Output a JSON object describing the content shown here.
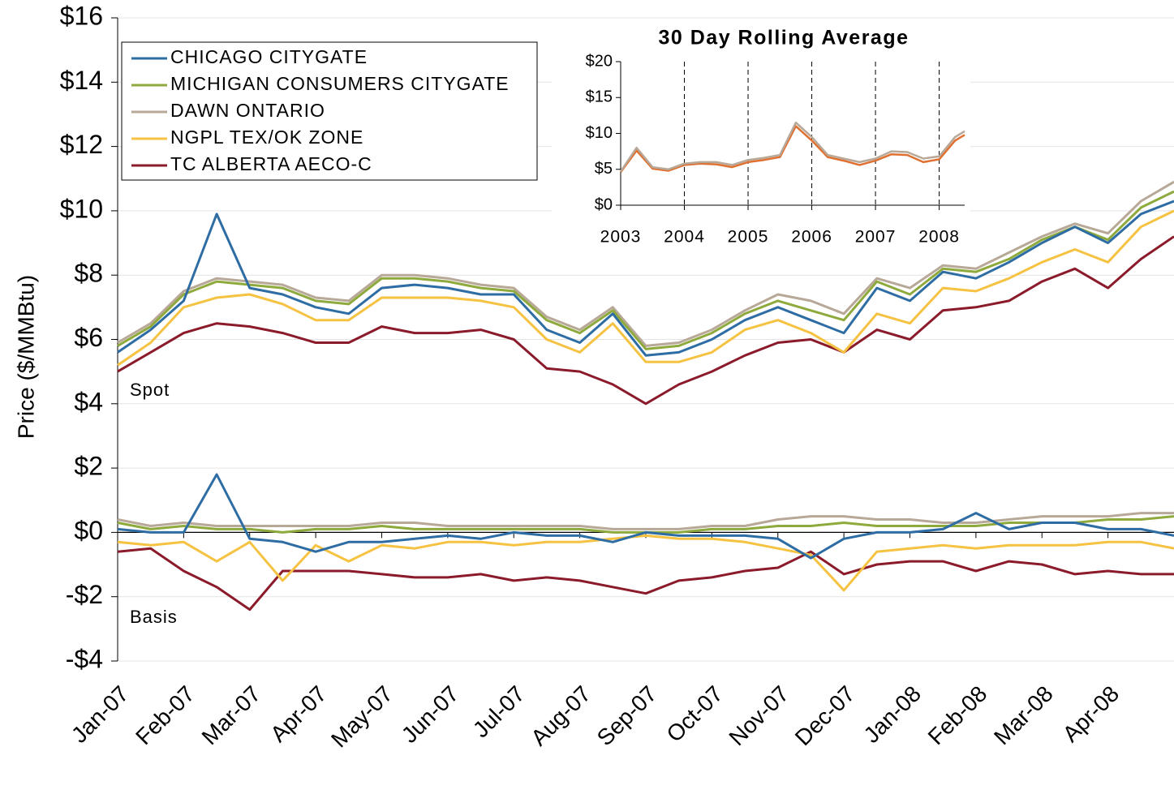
{
  "chart_data": [
    {
      "type": "line",
      "y_label": "Price ($/MMBtu)",
      "annotations": [
        "Spot",
        "Basis"
      ],
      "legend": "upper left",
      "grid": true,
      "x": [
        "Jan-07",
        null,
        "Feb-07",
        null,
        "Mar-07",
        null,
        "Apr-07",
        null,
        "May-07",
        null,
        "Jun-07",
        null,
        "Jul-07",
        null,
        "Aug-07",
        null,
        "Sep-07",
        null,
        "Oct-07",
        null,
        "Nov-07",
        null,
        "Dec-07",
        null,
        "Jan-08",
        null,
        "Feb-08",
        null,
        "Mar-08",
        null,
        "Apr-08",
        null,
        null
      ],
      "ylim": [
        -4,
        16
      ],
      "yticks": [
        {
          "value": -4,
          "label": "-$4"
        },
        {
          "value": -2,
          "label": "-$2"
        },
        {
          "value": 0,
          "label": "$0"
        },
        {
          "value": 2,
          "label": "$2"
        },
        {
          "value": 4,
          "label": "$4"
        },
        {
          "value": 6,
          "label": "$6"
        },
        {
          "value": 8,
          "label": "$8"
        },
        {
          "value": 10,
          "label": "$10"
        },
        {
          "value": 12,
          "label": "$12"
        },
        {
          "value": 14,
          "label": "$14"
        },
        {
          "value": 16,
          "label": "$16"
        }
      ],
      "series": [
        {
          "name": "CHICAGO CITYGATE",
          "color": "#2e6da4",
          "values": [
            5.6,
            6.3,
            7.2,
            9.9,
            7.6,
            7.4,
            7.0,
            6.8,
            7.6,
            7.7,
            7.6,
            7.4,
            7.4,
            6.3,
            5.9,
            6.8,
            5.5,
            5.6,
            6.0,
            6.6,
            7.0,
            6.6,
            6.2,
            7.6,
            7.2,
            8.1,
            7.9,
            8.4,
            9.0,
            9.5,
            9.0,
            9.9,
            10.3
          ],
          "basis": [
            0.1,
            0.0,
            0.0,
            1.8,
            -0.2,
            -0.3,
            -0.6,
            -0.3,
            -0.3,
            -0.2,
            -0.1,
            -0.2,
            0.0,
            -0.1,
            -0.1,
            -0.3,
            0.0,
            -0.1,
            -0.1,
            -0.1,
            -0.2,
            -0.8,
            -0.2,
            0.0,
            0.0,
            0.1,
            0.6,
            0.1,
            0.3,
            0.3,
            0.1,
            0.1,
            -0.1
          ]
        },
        {
          "name": "MICHIGAN CONSUMERS CITYGATE",
          "color": "#8faa3c",
          "values": [
            5.8,
            6.4,
            7.4,
            7.8,
            7.7,
            7.6,
            7.2,
            7.1,
            7.9,
            7.9,
            7.8,
            7.6,
            7.5,
            6.6,
            6.2,
            6.9,
            5.7,
            5.8,
            6.2,
            6.8,
            7.2,
            6.9,
            6.6,
            7.8,
            7.4,
            8.2,
            8.1,
            8.5,
            9.1,
            9.5,
            9.1,
            10.1,
            10.6
          ],
          "basis": [
            0.3,
            0.1,
            0.2,
            0.1,
            0.1,
            0.0,
            0.1,
            0.1,
            0.2,
            0.1,
            0.1,
            0.1,
            0.1,
            0.1,
            0.1,
            0.0,
            0.0,
            0.0,
            0.1,
            0.1,
            0.2,
            0.2,
            0.3,
            0.2,
            0.2,
            0.2,
            0.2,
            0.3,
            0.3,
            0.3,
            0.4,
            0.4,
            0.5
          ]
        },
        {
          "name": "DAWN ONTARIO",
          "color": "#b8a898",
          "values": [
            5.9,
            6.5,
            7.5,
            7.9,
            7.8,
            7.7,
            7.3,
            7.2,
            8.0,
            8.0,
            7.9,
            7.7,
            7.6,
            6.7,
            6.3,
            7.0,
            5.8,
            5.9,
            6.3,
            6.9,
            7.4,
            7.2,
            6.8,
            7.9,
            7.6,
            8.3,
            8.2,
            8.7,
            9.2,
            9.6,
            9.3,
            10.3,
            10.9
          ],
          "basis": [
            0.4,
            0.2,
            0.3,
            0.2,
            0.2,
            0.2,
            0.2,
            0.2,
            0.3,
            0.3,
            0.2,
            0.2,
            0.2,
            0.2,
            0.2,
            0.1,
            0.1,
            0.1,
            0.2,
            0.2,
            0.4,
            0.5,
            0.5,
            0.4,
            0.4,
            0.3,
            0.3,
            0.4,
            0.5,
            0.5,
            0.5,
            0.6,
            0.6
          ]
        },
        {
          "name": "NGPL TEX/OK ZONE",
          "color": "#f5c242",
          "values": [
            5.2,
            5.9,
            7.0,
            7.3,
            7.4,
            7.1,
            6.6,
            6.6,
            7.3,
            7.3,
            7.3,
            7.2,
            7.0,
            6.0,
            5.6,
            6.5,
            5.3,
            5.3,
            5.6,
            6.3,
            6.6,
            6.2,
            5.6,
            6.8,
            6.5,
            7.6,
            7.5,
            7.9,
            8.4,
            8.8,
            8.4,
            9.5,
            10.0
          ],
          "basis": [
            -0.3,
            -0.4,
            -0.3,
            -0.9,
            -0.3,
            -1.5,
            -0.4,
            -0.9,
            -0.4,
            -0.5,
            -0.3,
            -0.3,
            -0.4,
            -0.3,
            -0.3,
            -0.2,
            -0.1,
            -0.2,
            -0.2,
            -0.3,
            -0.5,
            -0.7,
            -1.8,
            -0.6,
            -0.5,
            -0.4,
            -0.5,
            -0.4,
            -0.4,
            -0.4,
            -0.3,
            -0.3,
            -0.5
          ]
        },
        {
          "name": "TC ALBERTA AECO-C",
          "color": "#8b1a2b",
          "values": [
            5.0,
            5.6,
            6.2,
            6.5,
            6.4,
            6.2,
            5.9,
            5.9,
            6.4,
            6.2,
            6.2,
            6.3,
            6.0,
            5.1,
            5.0,
            4.6,
            4.0,
            4.6,
            5.0,
            5.5,
            5.9,
            6.0,
            5.6,
            6.3,
            6.0,
            6.9,
            7.0,
            7.2,
            7.8,
            8.2,
            7.6,
            8.5,
            9.2
          ],
          "basis": [
            -0.6,
            -0.5,
            -1.2,
            -1.7,
            -2.4,
            -1.2,
            -1.2,
            -1.2,
            -1.3,
            -1.4,
            -1.4,
            -1.3,
            -1.5,
            -1.4,
            -1.5,
            -1.7,
            -1.9,
            -1.5,
            -1.4,
            -1.2,
            -1.1,
            -0.6,
            -1.3,
            -1.0,
            -0.9,
            -0.9,
            -1.2,
            -0.9,
            -1.0,
            -1.3,
            -1.2,
            -1.3,
            -1.3
          ]
        }
      ]
    },
    {
      "type": "line",
      "title": "30 Day Rolling Average",
      "grid": true,
      "x": [
        2003.0,
        2003.25,
        2003.5,
        2003.75,
        2004.0,
        2004.25,
        2004.5,
        2004.75,
        2005.0,
        2005.25,
        2005.5,
        2005.75,
        2006.0,
        2006.25,
        2006.5,
        2006.75,
        2007.0,
        2007.25,
        2007.5,
        2007.75,
        2008.0,
        2008.25,
        2008.4
      ],
      "xlim": [
        2003,
        2008.4
      ],
      "xticks": [
        2003,
        2004,
        2005,
        2006,
        2007,
        2008
      ],
      "ylim": [
        0,
        20
      ],
      "yticks": [
        {
          "value": 0,
          "label": "$0"
        },
        {
          "value": 5,
          "label": "$5"
        },
        {
          "value": 10,
          "label": "$10"
        },
        {
          "value": 15,
          "label": "$15"
        },
        {
          "value": 20,
          "label": "$20"
        }
      ],
      "series": [
        {
          "color": "#e07030",
          "values": [
            4.6,
            7.6,
            5.1,
            4.8,
            5.6,
            5.8,
            5.7,
            5.3,
            6.0,
            6.3,
            6.7,
            11.0,
            9.0,
            6.7,
            6.2,
            5.6,
            6.2,
            7.1,
            7.0,
            6.0,
            6.4,
            9.0,
            9.8
          ]
        },
        {
          "color": "#b8a898",
          "values": [
            4.7,
            8.0,
            5.3,
            5.0,
            5.8,
            6.0,
            6.0,
            5.6,
            6.3,
            6.6,
            7.0,
            11.5,
            9.5,
            7.0,
            6.5,
            6.0,
            6.5,
            7.5,
            7.4,
            6.5,
            6.8,
            9.5,
            10.3
          ]
        }
      ]
    }
  ]
}
